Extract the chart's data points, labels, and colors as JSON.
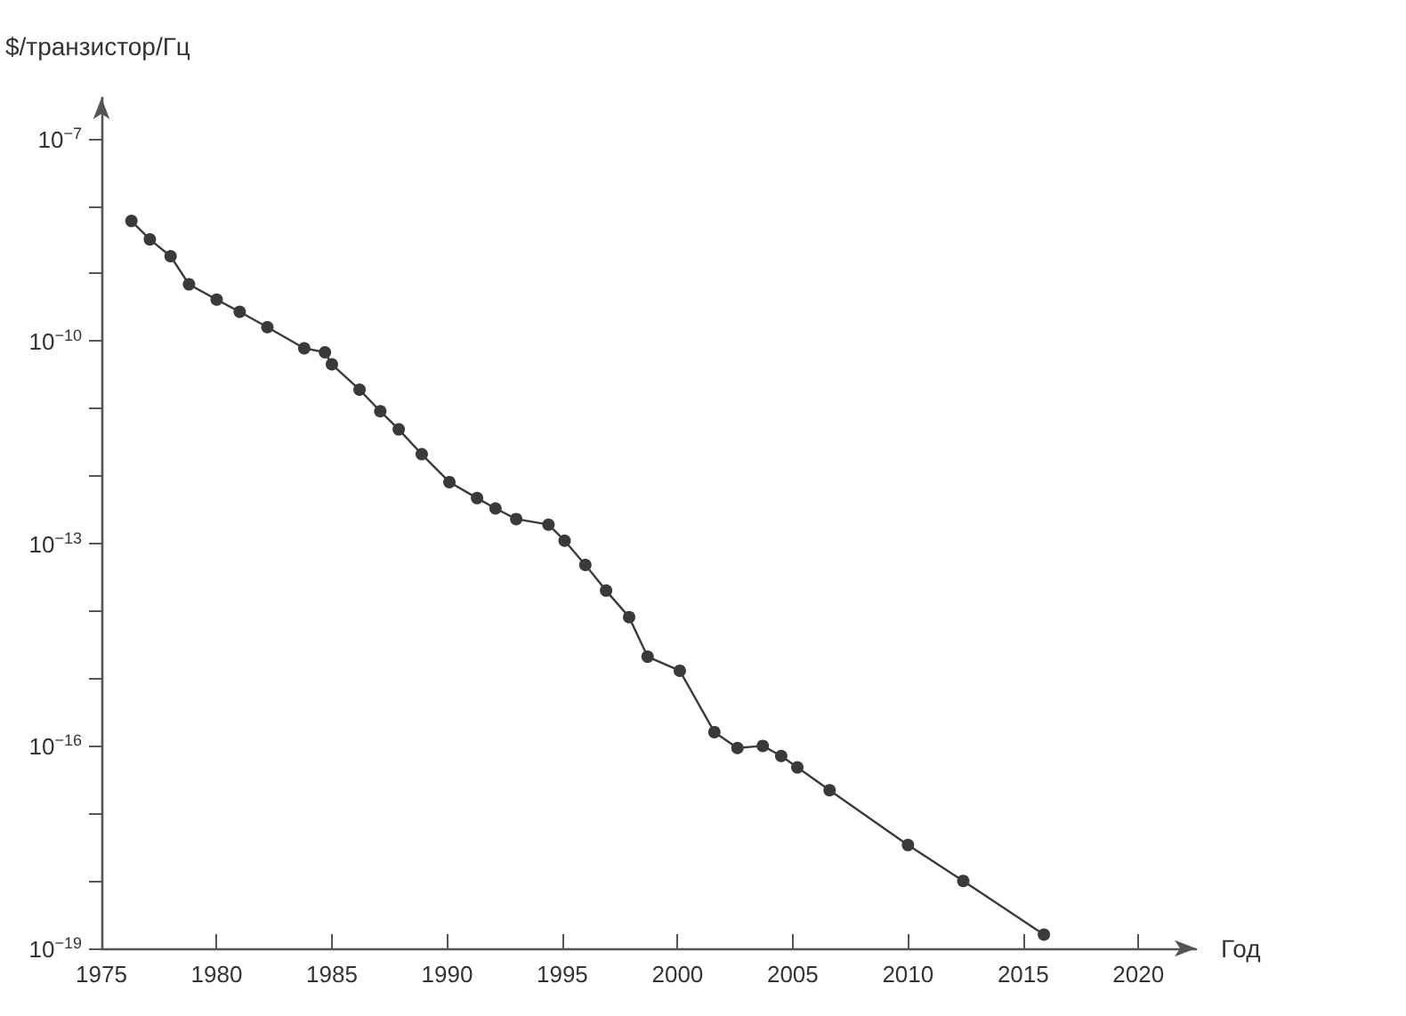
{
  "chart_data": {
    "type": "line",
    "ylabel": "$/транзистор/Гц",
    "xlabel": "Год",
    "log": true,
    "grid": false,
    "marker": "circle",
    "line_style": "solid",
    "x": [
      1976.3,
      1977.1,
      1978.0,
      1978.8,
      1980.0,
      1981.0,
      1982.2,
      1983.8,
      1984.7,
      1985.0,
      1986.2,
      1987.1,
      1987.9,
      1988.9,
      1990.1,
      1991.3,
      1992.1,
      1993.0,
      1994.4,
      1995.1,
      1996.0,
      1996.9,
      1997.9,
      1998.7,
      2000.1,
      2001.6,
      2002.6,
      2003.7,
      2004.5,
      2005.2,
      2006.6,
      2010.0,
      2012.4,
      2015.9
    ],
    "series": [
      {
        "color": "#3a3a3a",
        "values": [
          6e-09,
          3.2e-09,
          1.8e-09,
          6.9e-10,
          4.1e-10,
          2.7e-10,
          1.6e-10,
          7.8e-11,
          6.8e-11,
          4.5e-11,
          1.9e-11,
          9.1e-12,
          4.9e-12,
          2.1e-12,
          8.1e-13,
          4.7e-13,
          3.3e-13,
          2.3e-13,
          1.9e-13,
          1.1e-13,
          4.8e-14,
          2e-14,
          8.1e-15,
          2.1e-15,
          1.3e-15,
          1.6e-16,
          9.3e-17,
          1e-16,
          7.1e-17,
          4.8e-17,
          2.2e-17,
          3.4e-18,
          1e-18,
          1.6e-19
        ]
      }
    ],
    "xlim": [
      1975,
      2022.5
    ],
    "xticks": [
      1975,
      1980,
      1985,
      1990,
      1995,
      2000,
      2005,
      2010,
      2015,
      2020
    ],
    "ylim": [
      1e-19,
      4e-07
    ],
    "yticks": [
      {
        "value": 1e-19,
        "label": "10$^{−19}$"
      },
      {
        "value": 1e-18,
        "label": null
      },
      {
        "value": 1e-17,
        "label": null
      },
      {
        "value": 1e-16,
        "label": "10$^{−16}$"
      },
      {
        "value": 1e-15,
        "label": null
      },
      {
        "value": 1e-14,
        "label": null
      },
      {
        "value": 1e-13,
        "label": "10$^{−13}$"
      },
      {
        "value": 1e-12,
        "label": null
      },
      {
        "value": 1e-11,
        "label": null
      },
      {
        "value": 1e-10,
        "label": "10$^{−10}$"
      },
      {
        "value": 1e-09,
        "label": null
      },
      {
        "value": 1e-08,
        "label": null
      },
      {
        "value": 1e-07,
        "label": "10$^{−7}$"
      }
    ]
  }
}
